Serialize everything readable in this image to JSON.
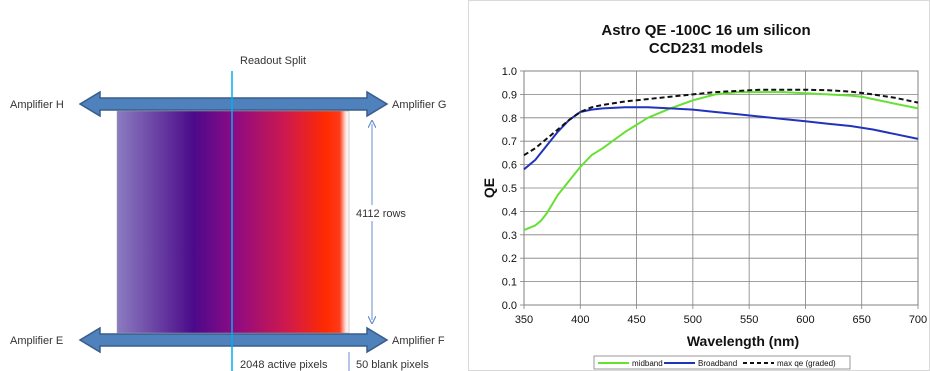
{
  "diagram": {
    "readout_split_label": "Readout Split",
    "amplifier_h": "Amplifier H",
    "amplifier_g": "Amplifier G",
    "amplifier_e": "Amplifier E",
    "amplifier_f": "Amplifier F",
    "rows_label": "4112 rows",
    "active_pixels_label": "2048 active pixels",
    "blank_pixels_label": "50 blank pixels",
    "colors": {
      "arrow": "#4f81bd",
      "arrow_outline": "#385d8a",
      "split_line": "#00b0f0",
      "gradient": [
        "#8b7cc0",
        "#4b0a8a",
        "#8b0a85",
        "#d11a4a",
        "#ff2a00",
        "#ffffff"
      ]
    }
  },
  "chart_data": {
    "type": "line",
    "title": [
      "Astro QE -100C 16 um silicon",
      "CCD231 models"
    ],
    "xlabel": "Wavelength (nm)",
    "ylabel": "QE",
    "xlim": [
      350,
      700
    ],
    "ylim": [
      0.0,
      1.0
    ],
    "xticks": [
      350,
      400,
      450,
      500,
      550,
      600,
      650,
      700
    ],
    "yticks": [
      0.0,
      0.1,
      0.2,
      0.3,
      0.4,
      0.5,
      0.6,
      0.7,
      0.8,
      0.9,
      1.0
    ],
    "grid": true,
    "legend_position": "bottom",
    "series": [
      {
        "name": "midband",
        "color": "#66e033",
        "dash": "",
        "x": [
          350,
          360,
          365,
          370,
          380,
          390,
          400,
          410,
          420,
          440,
          450,
          460,
          480,
          500,
          520,
          540,
          560,
          580,
          600,
          620,
          640,
          650,
          660,
          680,
          700
        ],
        "y": [
          0.32,
          0.34,
          0.36,
          0.39,
          0.47,
          0.53,
          0.59,
          0.64,
          0.67,
          0.74,
          0.77,
          0.8,
          0.84,
          0.875,
          0.9,
          0.91,
          0.91,
          0.91,
          0.905,
          0.9,
          0.895,
          0.89,
          0.88,
          0.86,
          0.84
        ]
      },
      {
        "name": "Broadband",
        "color": "#2233bb",
        "dash": "",
        "x": [
          350,
          360,
          370,
          380,
          390,
          400,
          410,
          420,
          440,
          460,
          480,
          500,
          520,
          540,
          560,
          580,
          600,
          620,
          640,
          660,
          680,
          700
        ],
        "y": [
          0.58,
          0.62,
          0.68,
          0.74,
          0.79,
          0.825,
          0.835,
          0.84,
          0.845,
          0.845,
          0.84,
          0.835,
          0.825,
          0.815,
          0.805,
          0.795,
          0.785,
          0.775,
          0.765,
          0.75,
          0.73,
          0.71
        ]
      },
      {
        "name": "max qe (graded)",
        "color": "#111111",
        "dash": "5,3",
        "x": [
          350,
          360,
          370,
          380,
          390,
          400,
          410,
          420,
          440,
          460,
          480,
          500,
          520,
          540,
          560,
          580,
          600,
          620,
          640,
          660,
          680,
          700
        ],
        "y": [
          0.64,
          0.67,
          0.71,
          0.75,
          0.79,
          0.825,
          0.845,
          0.855,
          0.87,
          0.88,
          0.89,
          0.9,
          0.91,
          0.915,
          0.92,
          0.92,
          0.92,
          0.918,
          0.912,
          0.9,
          0.885,
          0.865
        ]
      }
    ]
  }
}
